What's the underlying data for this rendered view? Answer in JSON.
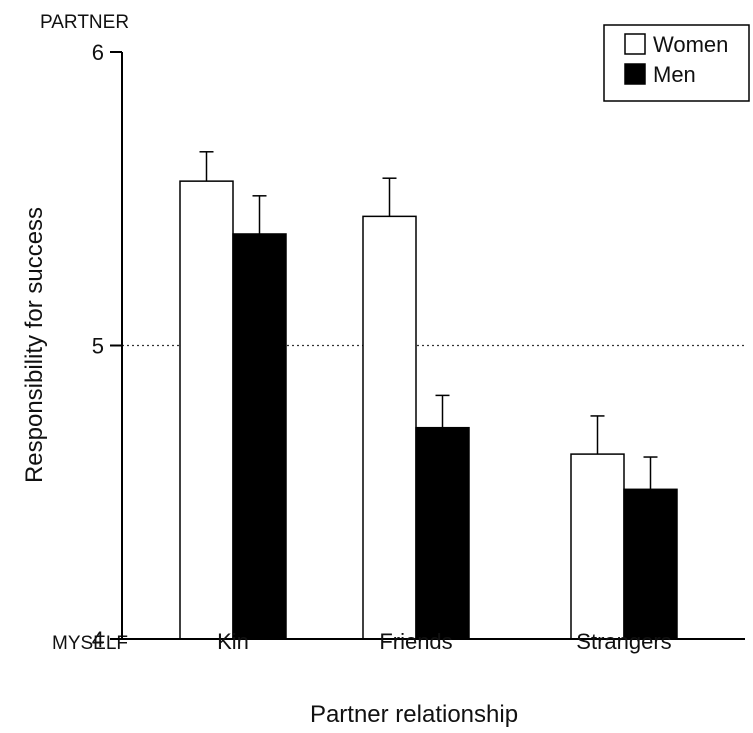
{
  "chart_data": {
    "type": "bar",
    "title": "",
    "xlabel": "Partner relationship",
    "ylabel": "Responsibility for success",
    "ylim": [
      4,
      6
    ],
    "yticks": [
      4,
      5,
      6
    ],
    "reference_line": 5,
    "top_anchor": "PARTNER",
    "bottom_anchor": "MYSELF",
    "categories": [
      "Kin",
      "Friends",
      "Strangers"
    ],
    "series": [
      {
        "name": "Women",
        "values": [
          5.56,
          5.44,
          4.63
        ],
        "errors": [
          0.1,
          0.13,
          0.13
        ],
        "fill": "#ffffff"
      },
      {
        "name": "Men",
        "values": [
          5.38,
          4.72,
          4.51
        ],
        "errors": [
          0.13,
          0.11,
          0.11
        ],
        "fill": "#000000"
      }
    ],
    "legend_position": "top-right",
    "grid": false
  }
}
